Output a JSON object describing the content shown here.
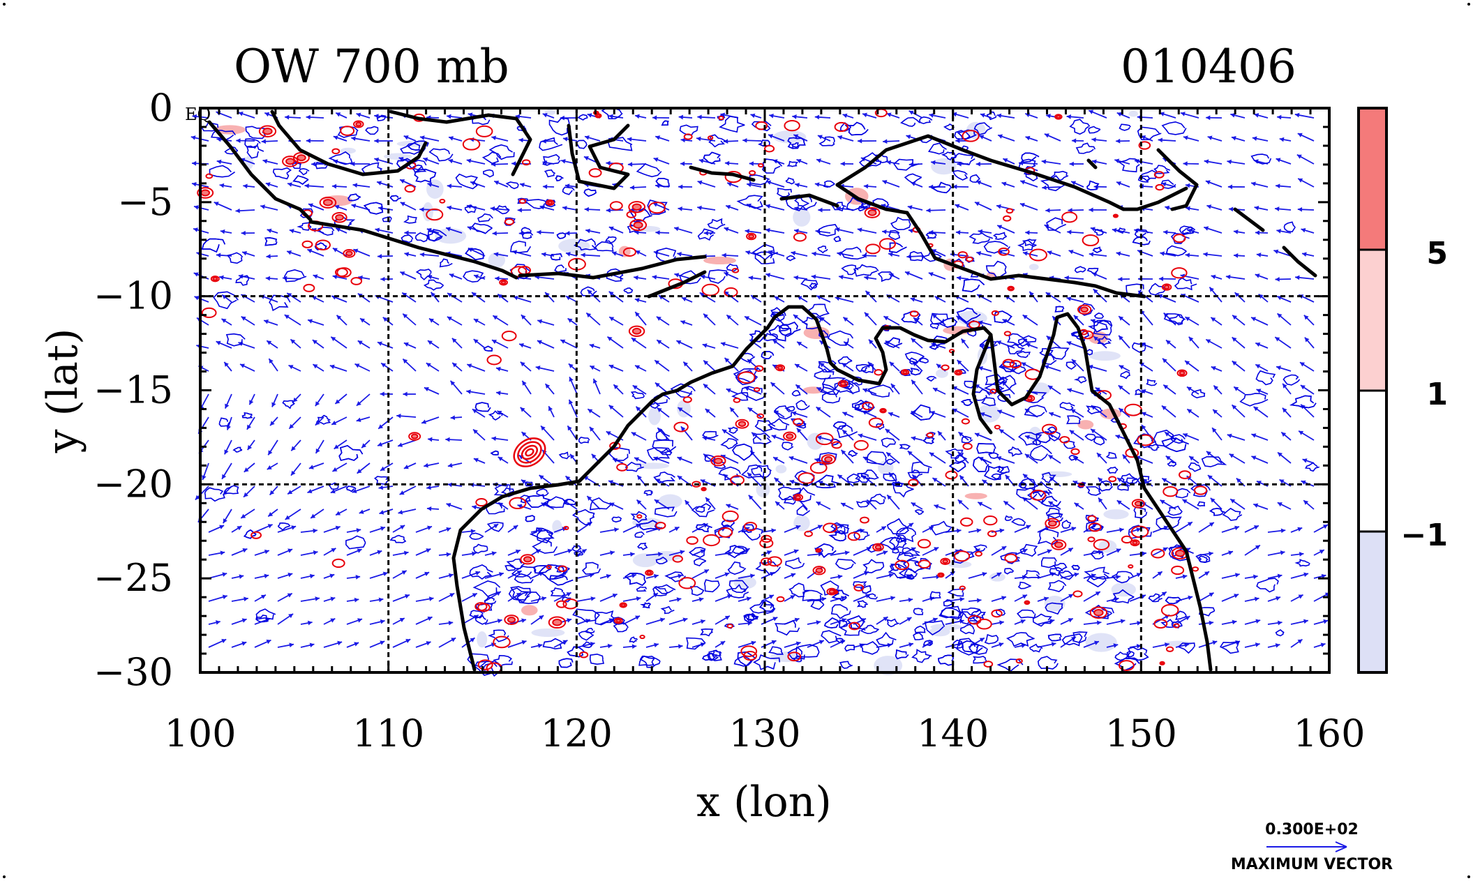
{
  "title_left": "OW 700 mb",
  "title_right": "010406",
  "eq_label": "EQ",
  "chart_data": {
    "type": "contour",
    "xlabel": "x (lon)",
    "ylabel": "y (lat)",
    "xlim": [
      100,
      160
    ],
    "ylim": [
      -30,
      0
    ],
    "xticks": [
      "100",
      "110",
      "120",
      "130",
      "140",
      "150",
      "160"
    ],
    "yticks": [
      "0",
      "−5",
      "−10",
      "−15",
      "−20",
      "−25",
      "−30"
    ],
    "grid_lon": [
      110,
      120,
      130,
      140,
      150
    ],
    "grid_lat": [
      -10,
      -20
    ],
    "colorbar": {
      "ticks": [
        "5",
        "1",
        "−1"
      ],
      "colors": [
        "#f47a7a",
        "#fcd0d0",
        "#ffffff",
        "#dde0f6"
      ]
    },
    "vector_legend": {
      "value": "0.300E+02",
      "label": "MAXIMUM VECTOR"
    },
    "colors": {
      "positive_contour": "#e8000b",
      "negative_contour": "#0000e0",
      "coastline": "#000000"
    }
  }
}
